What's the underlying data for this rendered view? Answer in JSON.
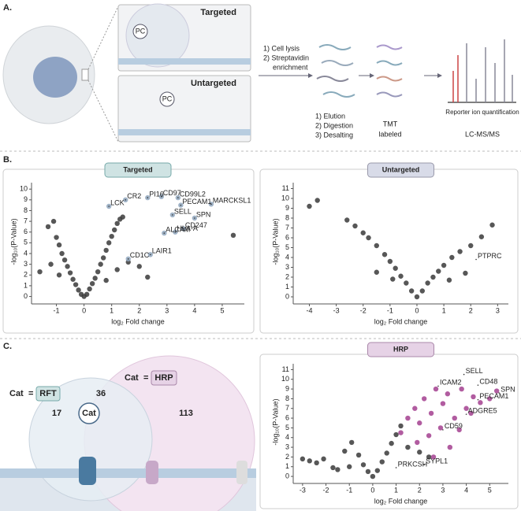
{
  "panels": {
    "A": {
      "label": "A.",
      "targeted": "Targeted",
      "untargeted": "Untargeted",
      "pc": "PC",
      "steps1": [
        "1) Cell lysis",
        "2) Streptavidin",
        "enrichment"
      ],
      "steps2": [
        "1) Elution",
        "2) Digestion",
        "3) Desalting"
      ],
      "tmt": [
        "TMT",
        "labeled"
      ],
      "reporter": "Reporter ion quantification",
      "lcms": "LC-MS/MS"
    },
    "B": {
      "label": "B."
    },
    "C": {
      "label": "C.",
      "cat": "Cat",
      "eq": "=",
      "rft": "RFT",
      "hrp": "HRP",
      "n17": 17,
      "n36": 36,
      "n113": 113
    }
  },
  "chart_data": [
    {
      "type": "scatter",
      "title": "Targeted",
      "x_label": "log₂ Fold change",
      "y_label": "-log₁₀(P-Value)",
      "xlim": [
        -1.9,
        5.8
      ],
      "ylim": [
        -0.4,
        10.6
      ],
      "xticks": [
        -1,
        0,
        1,
        2,
        3,
        4,
        5
      ],
      "yticks": [
        0,
        1,
        2,
        3,
        4,
        5,
        6,
        7,
        8,
        9,
        10
      ],
      "color": "#3a3a3a",
      "x": [
        -1.6,
        -1.3,
        -1.1,
        -1.0,
        -0.9,
        -0.8,
        -0.7,
        -0.6,
        -0.5,
        -0.4,
        -0.3,
        -0.2,
        -0.1,
        0,
        0.1,
        0.2,
        0.3,
        0.4,
        0.5,
        0.6,
        0.7,
        0.8,
        0.9,
        1.0,
        1.1,
        1.2,
        1.3,
        1.4,
        -1.2,
        -0.9,
        0.8,
        1.2,
        1.6,
        2.0,
        2.3,
        5.4
      ],
      "values": [
        2.3,
        6.5,
        7.0,
        5.5,
        4.8,
        4.0,
        3.4,
        2.8,
        2.2,
        1.6,
        1.1,
        0.6,
        0.2,
        0,
        0.2,
        0.7,
        1.2,
        1.7,
        2.3,
        3.0,
        3.6,
        4.3,
        5.0,
        5.6,
        6.2,
        6.8,
        7.2,
        7.4,
        3.0,
        2.0,
        1.5,
        2.5,
        3.2,
        2.8,
        1.8,
        5.7
      ],
      "highlight": {
        "color": "#8fa6bd",
        "x": [
          1.5,
          2.3,
          2.8,
          3.4,
          4.6,
          3.5,
          0.9,
          4.0,
          3.2,
          3.6,
          3.3,
          2.9,
          2.4,
          1.6
        ],
        "values": [
          9.0,
          9.2,
          9.3,
          9.2,
          8.6,
          8.5,
          8.4,
          7.3,
          7.6,
          6.3,
          6.0,
          5.9,
          3.9,
          3.5
        ]
      },
      "annotations": [
        {
          "text": "CR2",
          "x": 1.5,
          "y": 9.0
        },
        {
          "text": "PI16",
          "x": 2.3,
          "y": 9.2
        },
        {
          "text": "CD97",
          "x": 2.8,
          "y": 9.3
        },
        {
          "text": "CD99L2",
          "x": 3.4,
          "y": 9.2
        },
        {
          "text": "MARCKSL1",
          "x": 4.6,
          "y": 8.6
        },
        {
          "text": "PECAM1",
          "x": 3.5,
          "y": 8.5
        },
        {
          "text": "LCK",
          "x": 0.9,
          "y": 8.4
        },
        {
          "text": "SPN",
          "x": 4.0,
          "y": 7.3
        },
        {
          "text": "SELL",
          "x": 3.2,
          "y": 7.6
        },
        {
          "text": "CD247",
          "x": 3.6,
          "y": 6.3
        },
        {
          "text": "HLA-A",
          "x": 3.3,
          "y": 6.0
        },
        {
          "text": "ALCAM",
          "x": 2.9,
          "y": 5.9
        },
        {
          "text": "LAIR1",
          "x": 2.4,
          "y": 3.9
        },
        {
          "text": "CD1C",
          "x": 1.6,
          "y": 3.5
        }
      ]
    },
    {
      "type": "scatter",
      "title": "Untargeted",
      "x_label": "log₂ Fold change",
      "y_label": "-log₁₀(P-Value)",
      "xlim": [
        -4.6,
        3.4
      ],
      "ylim": [
        -0.4,
        11.6
      ],
      "xticks": [
        -4,
        -3,
        -2,
        -1,
        0,
        1,
        2,
        3
      ],
      "yticks": [
        0,
        1,
        2,
        3,
        4,
        5,
        6,
        7,
        8,
        9,
        10,
        11
      ],
      "color": "#3a3a3a",
      "x": [
        -4.0,
        -3.7,
        -2.6,
        -2.3,
        -2.0,
        -1.8,
        -1.5,
        -1.2,
        -1.0,
        -0.8,
        -0.6,
        -0.4,
        -0.2,
        0,
        0.2,
        0.4,
        0.6,
        0.8,
        1.0,
        1.3,
        1.6,
        2.0,
        2.4,
        2.8,
        -1.5,
        -0.9,
        1.2,
        1.8
      ],
      "values": [
        9.2,
        9.8,
        7.8,
        7.2,
        6.5,
        6.0,
        5.2,
        4.3,
        3.6,
        2.9,
        2.1,
        1.4,
        0.6,
        0,
        0.6,
        1.4,
        2.0,
        2.6,
        3.2,
        4.0,
        4.6,
        5.2,
        6.1,
        7.3,
        2.5,
        1.8,
        1.7,
        2.4
      ],
      "annotations": [
        {
          "text": "PTPRC",
          "x": 2.2,
          "y": 3.8
        }
      ]
    },
    {
      "type": "scatter",
      "title": "HRP",
      "x_label": "log₂ Fold change",
      "y_label": "-log₁₀(P-Value)",
      "xlim": [
        -3.4,
        5.8
      ],
      "ylim": [
        -0.4,
        11.6
      ],
      "xticks": [
        -3,
        -2,
        -1,
        0,
        1,
        2,
        3,
        4,
        5
      ],
      "yticks": [
        0,
        1,
        2,
        3,
        4,
        5,
        6,
        7,
        8,
        9,
        10,
        11
      ],
      "color": "#3a3a3a",
      "x": [
        -3.0,
        -2.7,
        -2.4,
        -2.1,
        -1.7,
        -1.2,
        -0.9,
        -0.6,
        -0.4,
        -0.2,
        0,
        0.2,
        0.4,
        0.6,
        0.8,
        1.0,
        1.2,
        -1.5,
        -1.0,
        1.5,
        2.0,
        2.4
      ],
      "values": [
        1.8,
        1.6,
        1.4,
        1.8,
        0.9,
        2.6,
        3.5,
        2.2,
        1.2,
        0.5,
        0,
        0.6,
        1.5,
        2.4,
        3.4,
        4.3,
        5.2,
        0.7,
        1.0,
        3.0,
        2.5,
        2.0
      ],
      "highlight": {
        "color": "#a3408f",
        "x": [
          1.2,
          1.5,
          1.8,
          2.0,
          2.2,
          2.5,
          2.7,
          3.0,
          3.2,
          3.5,
          3.8,
          4.0,
          4.3,
          4.6,
          5.0,
          5.3,
          2.4,
          2.9,
          3.3,
          3.7,
          4.2,
          1.9,
          2.6
        ],
        "values": [
          4.5,
          6.0,
          7.0,
          5.5,
          8.0,
          6.5,
          9.0,
          7.5,
          8.5,
          6.0,
          9.0,
          7.0,
          8.2,
          7.6,
          8.0,
          8.8,
          4.2,
          5.0,
          3.0,
          4.8,
          6.5,
          3.5,
          2.0
        ]
      },
      "annotations": [
        {
          "text": "ICAM2",
          "x": 2.8,
          "y": 9.3
        },
        {
          "text": "SELL",
          "x": 3.9,
          "y": 10.5
        },
        {
          "text": "CD48",
          "x": 4.5,
          "y": 9.4
        },
        {
          "text": "SPN",
          "x": 5.4,
          "y": 8.6
        },
        {
          "text": "PECAM1",
          "x": 4.5,
          "y": 7.9
        },
        {
          "text": "ADGRE5",
          "x": 4.0,
          "y": 6.4
        },
        {
          "text": "CD59",
          "x": 3.0,
          "y": 4.8
        },
        {
          "text": "PRKCSH",
          "x": 1.0,
          "y": 0.9
        },
        {
          "text": "SYPL1",
          "x": 2.2,
          "y": 1.2
        }
      ]
    }
  ]
}
